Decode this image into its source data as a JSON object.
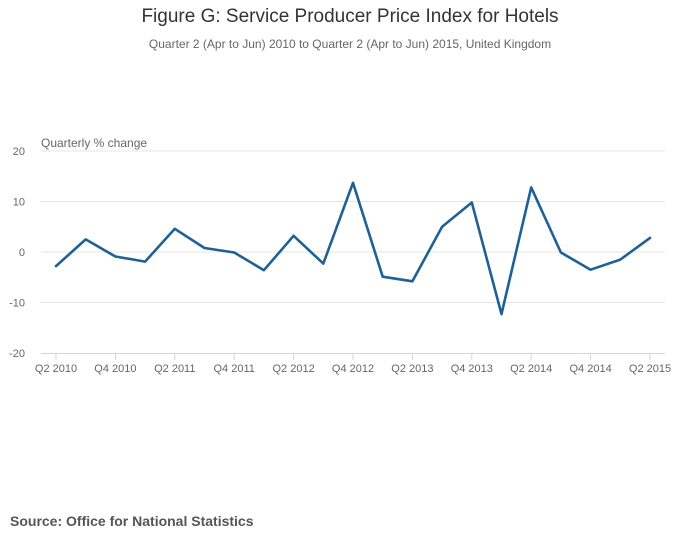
{
  "chart_data": {
    "type": "line",
    "title": "Figure G: Service Producer Price Index for Hotels",
    "subtitle": "Quarter 2 (Apr to Jun) 2010 to Quarter 2 (Apr to Jun) 2015, United Kingdom",
    "ylabel": "Quarterly % change",
    "xlabel": "",
    "ylim": [
      -20,
      20
    ],
    "yticks": [
      20,
      10,
      0,
      -10,
      -20
    ],
    "grid": true,
    "legend": "none",
    "x": [
      "Q2 2010",
      "Q3 2010",
      "Q4 2010",
      "Q1 2011",
      "Q2 2011",
      "Q3 2011",
      "Q4 2011",
      "Q1 2012",
      "Q2 2012",
      "Q3 2012",
      "Q4 2012",
      "Q1 2013",
      "Q2 2013",
      "Q3 2013",
      "Q4 2013",
      "Q1 2014",
      "Q2 2014",
      "Q3 2014",
      "Q4 2014",
      "Q1 2015",
      "Q2 2015"
    ],
    "xtick_labels": [
      "Q2 2010",
      "Q4 2010",
      "Q2 2011",
      "Q4 2011",
      "Q2 2012",
      "Q4 2012",
      "Q2 2013",
      "Q4 2013",
      "Q2 2014",
      "Q4 2014",
      "Q2 2015"
    ],
    "series": [
      {
        "values": [
          -2.8,
          2.5,
          -0.9,
          -1.9,
          4.6,
          0.8,
          -0.1,
          -3.6,
          3.2,
          -2.3,
          13.7,
          -4.9,
          -5.8,
          5.0,
          9.8,
          -12.3,
          12.8,
          -0.1,
          -3.5,
          -1.5,
          2.8
        ]
      }
    ],
    "colors": {
      "line": "#206095",
      "grid": "#e6e6e6",
      "axis": "#ccd6eb"
    }
  },
  "footer": {
    "source": "Source: Office for National Statistics"
  }
}
